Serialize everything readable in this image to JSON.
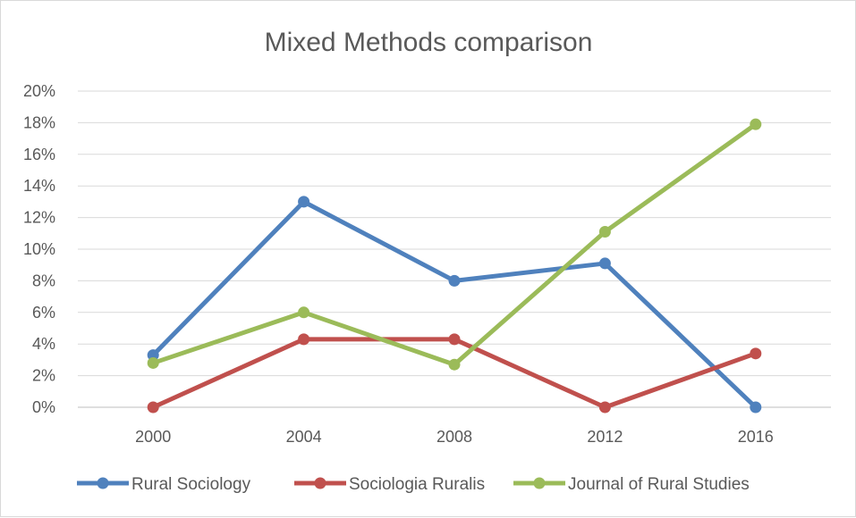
{
  "chart_data": {
    "type": "line",
    "title": "Mixed Methods comparison",
    "x": [
      "2000",
      "2004",
      "2008",
      "2012",
      "2016"
    ],
    "ylim": [
      0,
      20
    ],
    "yticks": [
      "0%",
      "2%",
      "4%",
      "6%",
      "8%",
      "10%",
      "12%",
      "14%",
      "16%",
      "18%",
      "20%"
    ],
    "grid": true,
    "legend_position": "bottom",
    "series": [
      {
        "name": "Rural Sociology",
        "color": "#4f81bd",
        "values": [
          3.3,
          13.0,
          8.0,
          9.1,
          0.0
        ]
      },
      {
        "name": "Sociologia Ruralis",
        "color": "#c0504d",
        "values": [
          0.0,
          4.3,
          4.3,
          0.0,
          3.4
        ]
      },
      {
        "name": "Journal of Rural Studies",
        "color": "#9bbb59",
        "values": [
          2.8,
          6.0,
          2.7,
          11.1,
          17.9
        ]
      }
    ]
  }
}
